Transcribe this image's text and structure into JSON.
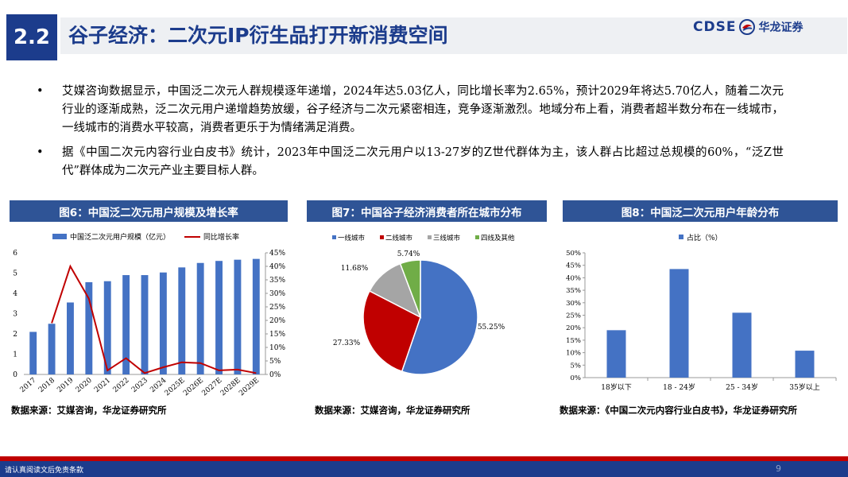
{
  "header": {
    "section_number": "2.2",
    "title": "谷子经济：二次元IP衍生品打开新消费空间",
    "logo_text": "CDSE",
    "logo_cn": "华龙证券"
  },
  "bullets": [
    "艾媒咨询数据显示，中国泛二次元人群规模逐年递增，2024年达5.03亿人，同比增长率为2.65%，预计2029年将达5.70亿人，随着二次元行业的逐渐成熟，泛二次元用户递增趋势放缓，谷子经济与二次元紧密相连，竞争逐渐激烈。地域分布上看，消费者超半数分布在一线城市，一线城市的消费水平较高，消费者更乐于为情绪满足消费。",
    "据《中国二次元内容行业白皮书》统计，2023年中国泛二次元用户以13-27岁的Z世代群体为主，该人群占比超过总规模的60%，“泛Z世代”群体成为二次元产业主要目标人群。"
  ],
  "bullet_symbol": "•",
  "panels": [
    {
      "title": "图6：中国泛二次元用户规模及增长率",
      "source": "数据来源：艾媒咨询，华龙证券研究所"
    },
    {
      "title": "图7：中国谷子经济消费者所在城市分布",
      "source": "数据来源：艾媒咨询，华龙证券研究所"
    },
    {
      "title": "图8：中国泛二次元用户年龄分布",
      "source": "数据来源：《中国二次元内容行业白皮书》，华龙证券研究所"
    }
  ],
  "footer": {
    "disclaimer": "请认真阅读文后免责条款",
    "page": "9"
  },
  "colors": {
    "navy": "#1c3c8c",
    "bar_blue": "#4472c4",
    "line_red": "#c00000",
    "pie": [
      "#4472c4",
      "#c00000",
      "#a5a5a5",
      "#70ad47"
    ]
  },
  "chart_data": [
    {
      "type": "bar",
      "categories": [
        "2017",
        "2018",
        "2019",
        "2020",
        "2021",
        "2022",
        "2023",
        "2024",
        "2025E",
        "2026E",
        "2027E",
        "2028E",
        "2029E"
      ],
      "series": [
        {
          "name": "中国泛二次元用户规模（亿元）",
          "type": "bar",
          "axis": "left",
          "values": [
            2.1,
            2.5,
            3.55,
            4.55,
            4.6,
            4.9,
            4.9,
            5.03,
            5.28,
            5.5,
            5.6,
            5.66,
            5.7
          ]
        },
        {
          "name": "同比增长率",
          "type": "line",
          "axis": "right",
          "values": [
            null,
            19.0,
            40.0,
            28.0,
            1.5,
            6.0,
            0.5,
            2.65,
            4.5,
            4.2,
            1.5,
            1.8,
            0.5
          ]
        }
      ],
      "y_left": {
        "min": 0,
        "max": 6,
        "ticks": [
          "0",
          "1",
          "2",
          "3",
          "4",
          "5",
          "6"
        ]
      },
      "y_right": {
        "min": 0,
        "max": 45,
        "ticks": [
          "0%",
          "5%",
          "10%",
          "15%",
          "20%",
          "25%",
          "30%",
          "35%",
          "40%",
          "45%"
        ]
      },
      "legend": "top"
    },
    {
      "type": "pie",
      "labels": [
        "一线城市",
        "二线城市",
        "三线城市",
        "四线及其他"
      ],
      "values": [
        55.25,
        27.33,
        11.68,
        5.74
      ],
      "value_labels": [
        "55.25%",
        "27.33%",
        "11.68%",
        "5.74%"
      ],
      "legend": "top"
    },
    {
      "type": "bar",
      "categories": [
        "18岁以下",
        "18 - 24岁",
        "25 - 34岁",
        "35岁以上"
      ],
      "series": [
        {
          "name": "占比（%）",
          "values": [
            19.0,
            43.5,
            26.0,
            10.8
          ]
        }
      ],
      "y": {
        "min": 0,
        "max": 50,
        "ticks": [
          "0%",
          "5%",
          "10%",
          "15%",
          "20%",
          "25%",
          "30%",
          "35%",
          "40%",
          "45%",
          "50%"
        ]
      },
      "legend": "top"
    }
  ]
}
